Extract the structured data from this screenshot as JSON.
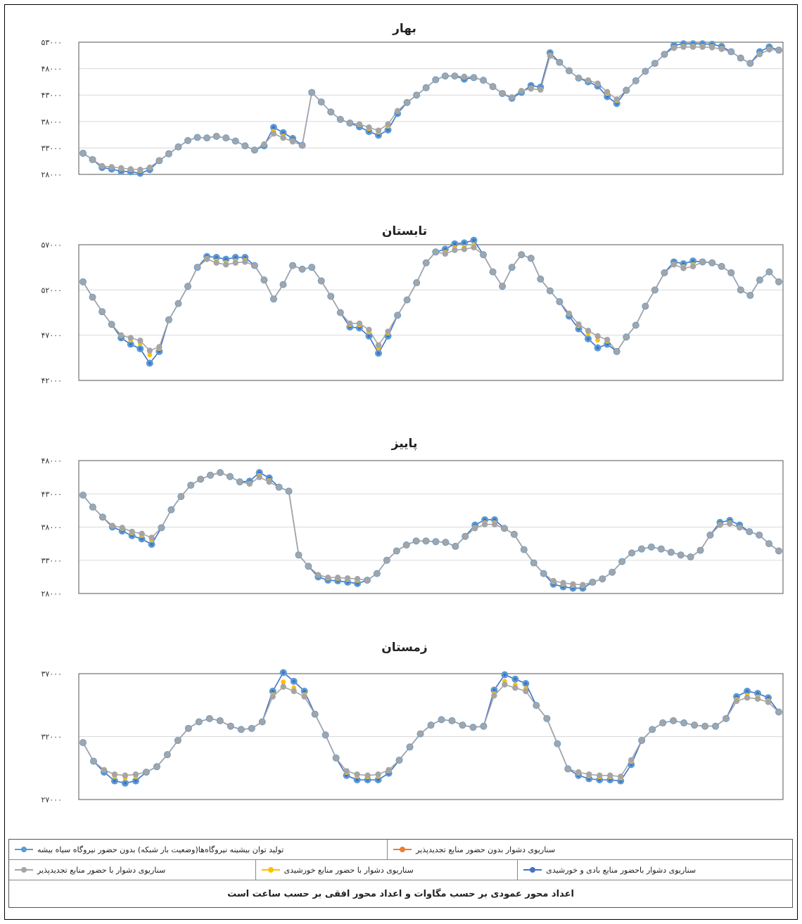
{
  "legend": {
    "items": [
      {
        "label": "تولید توان بیشینه نیروگاه‌ها(وضعیت بار شبکه) بدون حضور نیروگاه سیاه بیشه",
        "color": "#5b9bd5"
      },
      {
        "label": "سناریوی دشوار بدون حضور منابع تجدیدپذیر",
        "color": "#ed7d31"
      },
      {
        "label": "سناریوی دشوار با حضور منابع تجدیدپذیر",
        "color": "#a5a5a5"
      },
      {
        "label": "سناریوی دشوار با حضور منابع خورشیدی",
        "color": "#ffc000"
      },
      {
        "label": "سناریوی دشوار باحضور منابع بادی و خورشیدی",
        "color": "#4472c4"
      }
    ],
    "footer": "اعداد محور عمودی بر حسب مگاوات و اعداد محور افقی بر حسب ساعت است"
  },
  "chart_data": [
    {
      "type": "line",
      "title": "بهار",
      "yticks": [
        "۲۸۰۰۰",
        "۳۳۰۰۰",
        "۳۸۰۰۰",
        "۴۳۰۰۰",
        "۴۸۰۰۰",
        "۵۳۰۰۰"
      ],
      "ylim": [
        28000,
        53000
      ],
      "base": [
        32000,
        30800,
        29600,
        29400,
        29200,
        29000,
        28900,
        29300,
        30600,
        31900,
        33200,
        34400,
        35000,
        34900,
        35200,
        34900,
        34300,
        33400,
        32600,
        33700,
        35700,
        34900,
        34200,
        33500,
        43500,
        41700,
        39800,
        38400,
        37700,
        37500,
        36900,
        36300,
        37500,
        40000,
        41600,
        43000,
        44400,
        45900,
        46600,
        46600,
        46500,
        46300,
        45800,
        44600,
        43300,
        42600,
        43800,
        44200,
        44000,
        50400,
        49200,
        47600,
        46200,
        45800,
        45200,
        43600,
        42200,
        43900,
        45700,
        47500,
        49000,
        50700,
        51900,
        52100,
        52100,
        52100,
        52000,
        51700,
        51200,
        50000,
        49000,
        50700,
        51600,
        51500
      ],
      "highlights": [
        {
          "start": 2,
          "deltas": [
            -300,
            -400,
            -600,
            -500,
            -700,
            -400
          ]
        },
        {
          "start": 19,
          "deltas": [
            -300,
            1200,
            1000,
            600
          ]
        },
        {
          "start": 29,
          "deltas": [
            -500,
            -800,
            -900,
            -1100,
            -500
          ]
        },
        {
          "start": 40,
          "deltas": [
            -500
          ]
        },
        {
          "start": 45,
          "deltas": [
            -200,
            -300,
            600,
            500,
            600
          ]
        },
        {
          "start": 53,
          "deltas": [
            -300,
            -500,
            -900,
            -800
          ]
        },
        {
          "start": 62,
          "deltas": [
            500,
            600,
            600,
            600,
            600,
            500
          ]
        },
        {
          "start": 71,
          "deltas": [
            500,
            500
          ]
        }
      ]
    },
    {
      "type": "line",
      "title": "تابستان",
      "yticks": [
        "۴۲۰۰۰",
        "۴۷۰۰۰",
        "۵۲۰۰۰",
        "۵۷۰۰۰"
      ],
      "ylim": [
        42000,
        57000
      ],
      "base": [
        52900,
        51200,
        49600,
        48200,
        47000,
        46700,
        46400,
        45300,
        45700,
        48700,
        50500,
        52400,
        54500,
        55400,
        55000,
        54800,
        55000,
        55100,
        54700,
        53100,
        51000,
        52600,
        54700,
        54300,
        54500,
        53000,
        51300,
        49500,
        48300,
        48300,
        47600,
        45900,
        47400,
        49200,
        50900,
        52800,
        55000,
        56200,
        56000,
        56400,
        56500,
        56700,
        55900,
        54000,
        52400,
        54500,
        55900,
        55500,
        53200,
        51900,
        50700,
        49400,
        48200,
        47500,
        46900,
        46500,
        45200,
        46800,
        48100,
        50200,
        52000,
        53900,
        54800,
        54400,
        54600,
        55100,
        55000,
        54600,
        53900,
        52000,
        51400,
        53100,
        54000,
        52900
      ],
      "highlights": [
        {
          "start": 4,
          "deltas": [
            -300,
            -700,
            -900,
            -1400,
            -500
          ]
        },
        {
          "start": 13,
          "deltas": [
            300,
            600,
            600,
            600,
            500
          ]
        },
        {
          "start": 28,
          "deltas": [
            -400,
            -500,
            -700,
            -900,
            -500
          ]
        },
        {
          "start": 38,
          "deltas": [
            500,
            700,
            700,
            800
          ]
        },
        {
          "start": 51,
          "deltas": [
            -300,
            -500,
            -900,
            -1300,
            -500
          ]
        },
        {
          "start": 62,
          "deltas": [
            300,
            500,
            600
          ]
        }
      ]
    },
    {
      "type": "line",
      "title": "پاییز",
      "yticks": [
        "۲۸۰۰۰",
        "۳۳۰۰۰",
        "۳۸۰۰۰",
        "۴۳۰۰۰",
        "۴۸۰۰۰"
      ],
      "ylim": [
        28000,
        48000
      ],
      "base": [
        42800,
        41000,
        39500,
        38200,
        37900,
        37300,
        37000,
        36400,
        37900,
        40600,
        42600,
        44300,
        45200,
        45800,
        46200,
        45600,
        44800,
        44500,
        45500,
        44800,
        44000,
        43400,
        33800,
        32100,
        30800,
        30400,
        30400,
        30300,
        30200,
        30000,
        31000,
        33000,
        34400,
        35300,
        35900,
        35900,
        35800,
        35700,
        35100,
        36600,
        37800,
        38400,
        38400,
        37800,
        36900,
        34600,
        32600,
        31000,
        29900,
        29600,
        29400,
        29300,
        29700,
        30200,
        31200,
        32800,
        34100,
        34700,
        35000,
        34700,
        34200,
        33800,
        33500,
        34500,
        36800,
        38300,
        38500,
        37900,
        37300,
        36800,
        35500,
        34400
      ],
      "highlights": [
        {
          "start": 3,
          "deltas": [
            -200,
            -500,
            -600,
            -800,
            -1000
          ]
        },
        {
          "start": 17,
          "deltas": [
            400,
            700,
            600
          ]
        },
        {
          "start": 24,
          "deltas": [
            -300,
            -400,
            -500,
            -600,
            -700
          ]
        },
        {
          "start": 40,
          "deltas": [
            500,
            700,
            700
          ]
        },
        {
          "start": 48,
          "deltas": [
            -500,
            -600,
            -600,
            -500
          ]
        },
        {
          "start": 65,
          "deltas": [
            400,
            500,
            400
          ]
        }
      ]
    },
    {
      "type": "line",
      "title": "زمستان",
      "yticks": [
        "۲۷۰۰۰",
        "۳۲۰۰۰",
        "۳۷۰۰۰"
      ],
      "ylim": [
        27000,
        38500
      ],
      "base": [
        32200,
        30500,
        29700,
        29300,
        29200,
        29300,
        29500,
        30000,
        31100,
        32400,
        33500,
        34100,
        34400,
        34200,
        33700,
        33400,
        33500,
        34100,
        36400,
        37300,
        36900,
        36400,
        34800,
        32900,
        30800,
        29600,
        29300,
        29200,
        29300,
        29700,
        30600,
        31800,
        33000,
        33800,
        34300,
        34200,
        33800,
        33600,
        33700,
        36500,
        37500,
        37200,
        36900,
        35600,
        34400,
        32100,
        29800,
        29500,
        29300,
        29200,
        29200,
        29100,
        30600,
        32400,
        33400,
        34000,
        34200,
        34000,
        33800,
        33700,
        33700,
        34400,
        36000,
        36300,
        36200,
        35900,
        35000
      ],
      "highlights": [
        {
          "start": 2,
          "deltas": [
            -200,
            -600,
            -700,
            -600
          ]
        },
        {
          "start": 18,
          "deltas": [
            500,
            1300,
            900,
            500
          ]
        },
        {
          "start": 25,
          "deltas": [
            -400,
            -500,
            -400,
            -500,
            -300
          ]
        },
        {
          "start": 39,
          "deltas": [
            500,
            900,
            800,
            700
          ]
        },
        {
          "start": 47,
          "deltas": [
            -300,
            -400,
            -400,
            -400,
            -400,
            -400
          ]
        },
        {
          "start": 62,
          "deltas": [
            400,
            600,
            500,
            400
          ]
        }
      ]
    }
  ]
}
